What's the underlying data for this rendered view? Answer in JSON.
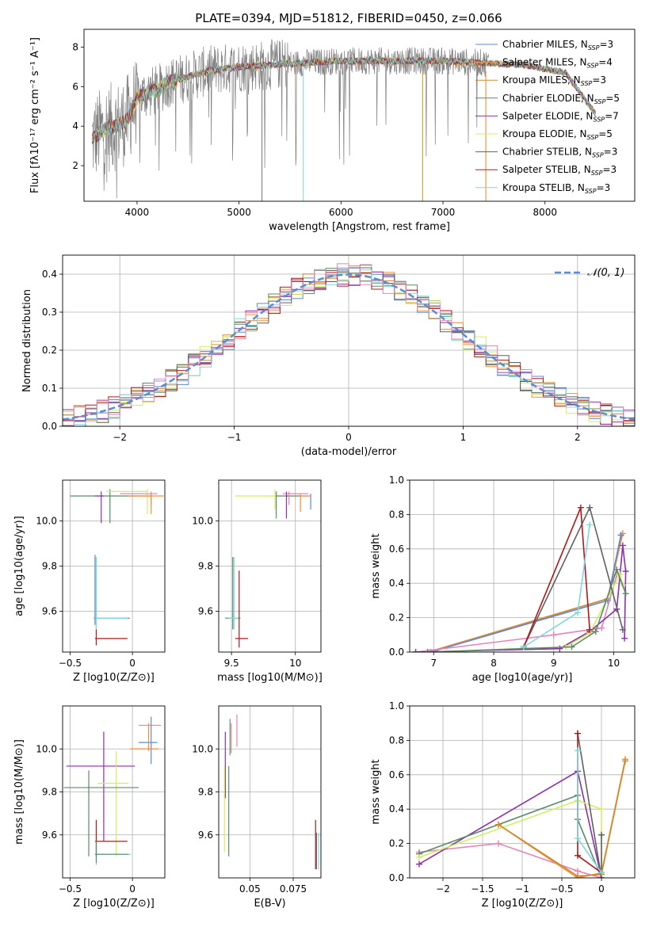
{
  "figure": {
    "title": "PLATE=0394, MJD=51812, FIBERID=0450, z=0.066"
  },
  "colors": {
    "chabrier_miles": "#5b8bd6",
    "salpeter_miles": "#ee8f3a",
    "kroupa_miles": "#d08a2c",
    "chabrier_elodie": "#5a8a6a",
    "salpeter_elodie": "#8e2fb0",
    "kroupa_elodie": "#d2ee5e",
    "chabrier_stelib": "#606060",
    "salpeter_stelib": "#b01818",
    "kroupa_stelib": "#7fd8df",
    "pink": "#e285b8",
    "grey_data": "#808080"
  },
  "chart_data": [
    {
      "id": "spectrum",
      "type": "line",
      "title": "PLATE=0394, MJD=51812, FIBERID=0450, z=0.066",
      "xlabel": "wavelength [Angstrom, rest frame]",
      "ylabel": "Flux [fλ10⁻¹⁷ erg cm⁻² s⁻¹ A⁻¹]",
      "xlim": [
        3480,
        8880
      ],
      "ylim": [
        0.2,
        8.9
      ],
      "xticks": [
        4000,
        5000,
        6000,
        7000,
        8000
      ],
      "yticks": [
        2,
        4,
        6,
        8
      ],
      "grid": false,
      "legend_position": "right",
      "continuum_x": [
        3550,
        3600,
        3700,
        3800,
        3900,
        4000,
        4100,
        4200,
        4300,
        4500,
        4700,
        5000,
        5300,
        5600,
        6000,
        6500,
        7000,
        7400,
        7800,
        8200,
        8500
      ],
      "continuum_y": [
        3.3,
        3.5,
        3.9,
        4.0,
        4.3,
        5.4,
        5.7,
        5.8,
        6.2,
        6.5,
        6.8,
        7.0,
        7.1,
        7.2,
        7.3,
        7.3,
        7.3,
        7.2,
        7.1,
        6.7,
        4.6
      ],
      "legend": [
        {
          "label": "Chabrier MILES, N",
          "sub": "SSP",
          "value": "=3",
          "color": "#5b8bd6"
        },
        {
          "label": "Salpeter MILES, N",
          "sub": "SSP",
          "value": "=4",
          "color": "#ee8f3a"
        },
        {
          "label": "Kroupa MILES, N",
          "sub": "SSP",
          "value": "=3",
          "color": "#d08a2c"
        },
        {
          "label": "Chabrier ELODIE, N",
          "sub": "SSP",
          "value": "=5",
          "color": "#5a8a6a"
        },
        {
          "label": "Salpeter ELODIE, N",
          "sub": "SSP",
          "value": "=7",
          "color": "#8e2fb0"
        },
        {
          "label": "Kroupa ELODIE, N",
          "sub": "SSP",
          "value": "=5",
          "color": "#d2ee5e"
        },
        {
          "label": "Chabrier STELIB, N",
          "sub": "SSP",
          "value": "=3",
          "color": "#606060"
        },
        {
          "label": "Salpeter STELIB, N",
          "sub": "SSP",
          "value": "=3",
          "color": "#b01818"
        },
        {
          "label": "Kroupa STELIB, N",
          "sub": "SSP",
          "value": "=3",
          "color": "#7fd8df"
        }
      ]
    },
    {
      "id": "residuals",
      "type": "line",
      "xlabel": "(data-model)/error",
      "ylabel": "Normed distribution",
      "xlim": [
        -2.5,
        2.5
      ],
      "ylim": [
        0.0,
        0.45
      ],
      "xticks": [
        -2,
        -1,
        0,
        1,
        2
      ],
      "yticks": [
        0.0,
        0.1,
        0.2,
        0.3,
        0.4
      ],
      "grid": true,
      "legend_position": "top-right",
      "legend_label": "𝒩(0, 1)"
    },
    {
      "id": "age_vs_Z",
      "type": "scatter",
      "xlabel": "Z [log10(Z/Z⊙)]",
      "ylabel": "age  [log10(age/yr)]",
      "xlim": [
        -0.56,
        0.26
      ],
      "ylim": [
        9.42,
        10.18
      ],
      "xticks": [
        -0.5,
        0.0
      ],
      "yticks": [
        9.6,
        9.8,
        10.0
      ],
      "grid": true,
      "points": [
        {
          "x": -0.18,
          "y": 10.11,
          "xerr": [
            0.32,
            0.33
          ],
          "yerr": [
            0.12,
            0.03
          ],
          "color": "#5a8a6a"
        },
        {
          "x": 0.12,
          "y": 10.13,
          "xerr": [
            0.33,
            0.0
          ],
          "yerr": [
            0.1,
            0.01
          ],
          "color": "#d2ee5e"
        },
        {
          "x": 0.15,
          "y": 10.12,
          "xerr": [
            0.25,
            0.05
          ],
          "yerr": [
            0.05,
            0.01
          ],
          "color": "#e285b8"
        },
        {
          "x": 0.15,
          "y": 10.11,
          "xerr": [
            0.18,
            0.1
          ],
          "yerr": [
            0.08,
            0.01
          ],
          "color": "#ee8f3a"
        },
        {
          "x": -0.25,
          "y": 10.11,
          "xerr": [
            0.05,
            0.02
          ],
          "yerr": [
            0.12,
            0.02
          ],
          "color": "#8e2fb0"
        },
        {
          "x": -0.29,
          "y": 9.57,
          "xerr": [
            0.02,
            0.27
          ],
          "yerr": [
            0.05,
            0.27
          ],
          "color": "#5a8a6a"
        },
        {
          "x": -0.29,
          "y": 9.57,
          "xerr": [
            0.01,
            0.25
          ],
          "yerr": [
            0.05,
            0.27
          ],
          "color": "#7fd8df"
        },
        {
          "x": -0.29,
          "y": 9.48,
          "xerr": [
            0.01,
            0.25
          ],
          "yerr": [
            0.03,
            0.04
          ],
          "color": "#b01818"
        },
        {
          "x": -0.3,
          "y": 9.57,
          "xerr": [
            0.0,
            0.0
          ],
          "yerr": [
            0.03,
            0.28
          ],
          "color": "#5b8bd6"
        }
      ]
    },
    {
      "id": "age_vs_mass",
      "type": "scatter",
      "xlabel": "mass [log10(M/M⊙)]",
      "ylabel": "",
      "xlim": [
        9.4,
        10.2
      ],
      "ylim": [
        9.42,
        10.18
      ],
      "xticks": [
        9.5,
        10.0
      ],
      "yticks": [
        9.6,
        9.8,
        10.0
      ],
      "grid": true,
      "points": [
        {
          "x": 9.84,
          "y": 10.11,
          "xerr": [
            0.31,
            0.15
          ],
          "yerr": [
            0.06,
            0.03
          ],
          "color": "#d2ee5e"
        },
        {
          "x": 9.85,
          "y": 10.11,
          "xerr": [
            0.0,
            0.25
          ],
          "yerr": [
            0.1,
            0.02
          ],
          "color": "#5a8a6a"
        },
        {
          "x": 9.95,
          "y": 10.12,
          "xerr": [
            0.05,
            0.15
          ],
          "yerr": [
            0.05,
            0.01
          ],
          "color": "#e285b8"
        },
        {
          "x": 10.04,
          "y": 10.11,
          "xerr": [
            0.0,
            0.08
          ],
          "yerr": [
            0.07,
            0.01
          ],
          "color": "#ee8f3a"
        },
        {
          "x": 10.12,
          "y": 10.11,
          "xerr": [
            0.0,
            0.0
          ],
          "yerr": [
            0.06,
            0.01
          ],
          "color": "#5b8bd6"
        },
        {
          "x": 9.93,
          "y": 10.11,
          "xerr": [
            0.0,
            0.01
          ],
          "yerr": [
            0.1,
            0.02
          ],
          "color": "#8e2fb0"
        },
        {
          "x": 9.51,
          "y": 9.57,
          "xerr": [
            0.06,
            0.06
          ],
          "yerr": [
            0.05,
            0.27
          ],
          "color": "#5a8a6a"
        },
        {
          "x": 9.52,
          "y": 9.57,
          "xerr": [
            0.04,
            0.04
          ],
          "yerr": [
            0.05,
            0.27
          ],
          "color": "#7fd8df"
        },
        {
          "x": 9.56,
          "y": 9.48,
          "xerr": [
            0.03,
            0.07
          ],
          "yerr": [
            0.04,
            0.3
          ],
          "color": "#b01818"
        }
      ]
    },
    {
      "id": "weight_vs_age",
      "type": "line",
      "xlabel": "age  [log10(age/yr)]",
      "ylabel": "mass weight",
      "xlim": [
        6.6,
        10.35
      ],
      "ylim": [
        0.0,
        1.0
      ],
      "xticks": [
        7,
        8,
        9,
        10
      ],
      "yticks": [
        0.0,
        0.2,
        0.4,
        0.6,
        0.8,
        1.0
      ],
      "grid": true,
      "series": [
        {
          "color": "#ee8f3a",
          "x": [
            6.9,
            9.9,
            10.15
          ],
          "y": [
            0.0,
            0.31,
            0.69
          ]
        },
        {
          "color": "#d08a2c",
          "x": [
            6.95,
            9.9,
            10.12
          ],
          "y": [
            0.0,
            0.31,
            0.68
          ]
        },
        {
          "color": "#5b8bd6",
          "x": [
            6.95,
            9.9,
            10.12
          ],
          "y": [
            0.0,
            0.3,
            0.68
          ]
        },
        {
          "color": "#e285b8",
          "x": [
            6.7,
            9.0,
            9.8,
            10.05
          ],
          "y": [
            0.0,
            0.1,
            0.14,
            0.45
          ]
        },
        {
          "color": "#8e2fb0",
          "x": [
            6.7,
            9.1,
            9.6,
            10.05,
            10.15,
            10.2,
            10.18
          ],
          "y": [
            0.0,
            0.02,
            0.12,
            0.25,
            0.62,
            0.47,
            0.08
          ]
        },
        {
          "color": "#d2ee5e",
          "x": [
            6.9,
            9.2,
            9.6,
            10.1,
            10.15
          ],
          "y": [
            0.0,
            0.03,
            0.11,
            0.45,
            0.39
          ]
        },
        {
          "color": "#5a8a6a",
          "x": [
            6.9,
            9.3,
            9.7,
            10.05,
            10.2
          ],
          "y": [
            0.0,
            0.03,
            0.12,
            0.48,
            0.34
          ]
        },
        {
          "color": "#606060",
          "x": [
            8.5,
            9.6,
            10.15
          ],
          "y": [
            0.03,
            0.84,
            0.13
          ]
        },
        {
          "color": "#b01818",
          "x": [
            8.5,
            9.45,
            9.6
          ],
          "y": [
            0.03,
            0.84,
            0.13
          ]
        },
        {
          "color": "#7fd8df",
          "x": [
            8.5,
            9.4,
            9.6
          ],
          "y": [
            0.03,
            0.23,
            0.74
          ]
        }
      ]
    },
    {
      "id": "mass_vs_Z",
      "type": "scatter",
      "xlabel": "Z [log10(Z/Z⊙)]",
      "ylabel": "mass [log10(M/M⊙)]",
      "xlim": [
        -0.56,
        0.26
      ],
      "ylim": [
        9.4,
        10.2
      ],
      "xticks": [
        -0.5,
        0.0
      ],
      "yticks": [
        9.6,
        9.8,
        10.0
      ],
      "grid": true,
      "points": [
        {
          "x": 0.14,
          "y": 10.11,
          "xerr": [
            0.09,
            0.09
          ],
          "yerr": [
            0.0,
            0.0
          ],
          "color": "#e285b8"
        },
        {
          "x": 0.15,
          "y": 10.03,
          "xerr": [
            0.1,
            0.05
          ],
          "yerr": [
            0.1,
            0.12
          ],
          "color": "#5b8bd6"
        },
        {
          "x": 0.13,
          "y": 10.0,
          "xerr": [
            0.15,
            0.08
          ],
          "yerr": [
            0.01,
            0.12
          ],
          "color": "#ee8f3a"
        },
        {
          "x": -0.23,
          "y": 9.92,
          "xerr": [
            0.3,
            0.25
          ],
          "yerr": [
            0.35,
            0.16
          ],
          "color": "#8e2fb0"
        },
        {
          "x": -0.13,
          "y": 9.84,
          "xerr": [
            0.15,
            0.1
          ],
          "yerr": [
            0.34,
            0.15
          ],
          "color": "#d2ee5e"
        },
        {
          "x": -0.35,
          "y": 9.82,
          "xerr": [
            0.2,
            0.4
          ],
          "yerr": [
            0.32,
            0.08
          ],
          "color": "#5a8a6a"
        },
        {
          "x": -0.29,
          "y": 9.57,
          "xerr": [
            0.01,
            0.25
          ],
          "yerr": [
            0.07,
            0.1
          ],
          "color": "#b01818"
        },
        {
          "x": -0.29,
          "y": 9.51,
          "xerr": [
            0.01,
            0.28
          ],
          "yerr": [
            0.05,
            0.06
          ],
          "color": "#7fd8df"
        },
        {
          "x": -0.29,
          "y": 9.51,
          "xerr": [
            0.01,
            0.26
          ],
          "yerr": [
            0.04,
            0.06
          ],
          "color": "#5a8a6a"
        }
      ]
    },
    {
      "id": "mass_vs_ebv",
      "type": "scatter",
      "xlabel": "E(B-V)",
      "ylabel": "",
      "xlim": [
        0.032,
        0.091
      ],
      "ylim": [
        9.4,
        10.2
      ],
      "xticks": [
        0.05,
        0.075
      ],
      "yticks": [
        9.6,
        9.8,
        10.0
      ],
      "grid": true,
      "points": [
        {
          "x": 0.0425,
          "y": 10.06,
          "xerr": [
            0.0,
            0.0
          ],
          "yerr": [
            0.05,
            0.1
          ],
          "color": "#e285b8"
        },
        {
          "x": 0.0385,
          "y": 10.04,
          "xerr": [
            0.0,
            0.0
          ],
          "yerr": [
            0.07,
            0.1
          ],
          "color": "#5b8bd6"
        },
        {
          "x": 0.0392,
          "y": 10.05,
          "xerr": [
            0.0,
            0.0
          ],
          "yerr": [
            0.07,
            0.07
          ],
          "color": "#ee8f3a"
        },
        {
          "x": 0.0358,
          "y": 9.92,
          "xerr": [
            0.0,
            0.0
          ],
          "yerr": [
            0.15,
            0.16
          ],
          "color": "#8e2fb0"
        },
        {
          "x": 0.0353,
          "y": 9.65,
          "xerr": [
            0.0,
            0.0
          ],
          "yerr": [
            0.13,
            0.27
          ],
          "color": "#d2ee5e"
        },
        {
          "x": 0.0378,
          "y": 9.7,
          "xerr": [
            0.0,
            0.0
          ],
          "yerr": [
            0.2,
            0.22
          ],
          "color": "#5a8a6a"
        },
        {
          "x": 0.0879,
          "y": 9.55,
          "xerr": [
            0.0,
            0.0
          ],
          "yerr": [
            0.11,
            0.12
          ],
          "color": "#b01818"
        },
        {
          "x": 0.0884,
          "y": 9.53,
          "xerr": [
            0.0,
            0.0
          ],
          "yerr": [
            0.09,
            0.08
          ],
          "color": "#606060"
        },
        {
          "x": 0.0896,
          "y": 9.52,
          "xerr": [
            0.0,
            0.0
          ],
          "yerr": [
            0.08,
            0.09
          ],
          "color": "#7fd8df"
        }
      ]
    },
    {
      "id": "weight_vs_Z",
      "type": "line",
      "xlabel": "Z [log10(Z/Z⊙)]",
      "ylabel": "mass weight",
      "xlim": [
        -2.42,
        0.42
      ],
      "ylim": [
        0.0,
        1.0
      ],
      "xticks": [
        -2.0,
        -1.5,
        -1.0,
        -0.5,
        0.0
      ],
      "yticks": [
        0.0,
        0.2,
        0.4,
        0.6,
        0.8,
        1.0
      ],
      "grid": true,
      "series": [
        {
          "color": "#e285b8",
          "x": [
            -2.3,
            -1.3,
            -0.3,
            0.0
          ],
          "y": [
            0.15,
            0.2,
            0.04,
            0.0
          ]
        },
        {
          "color": "#8e2fb0",
          "x": [
            -2.3,
            -0.3,
            0.0
          ],
          "y": [
            0.08,
            0.62,
            0.0
          ]
        },
        {
          "color": "#5a8a6a",
          "x": [
            -2.3,
            -0.3,
            -0.3,
            0.0
          ],
          "y": [
            0.14,
            0.48,
            0.34,
            0.0
          ]
        },
        {
          "color": "#d2ee5e",
          "x": [
            -2.3,
            -0.3,
            0.0,
            0.0
          ],
          "y": [
            0.12,
            0.45,
            0.4,
            0.0
          ]
        },
        {
          "color": "#ee8f3a",
          "x": [
            -1.3,
            -0.3,
            0.0,
            0.3
          ],
          "y": [
            0.31,
            0.0,
            0.03,
            0.69
          ]
        },
        {
          "color": "#d08a2c",
          "x": [
            -1.3,
            -0.3,
            0.0,
            0.3
          ],
          "y": [
            0.31,
            0.01,
            0.02,
            0.68
          ]
        },
        {
          "color": "#606060",
          "x": [
            -0.3,
            0.0,
            0.0
          ],
          "y": [
            0.84,
            0.0,
            0.25
          ]
        },
        {
          "color": "#b01818",
          "x": [
            -0.3,
            -0.3,
            0.0
          ],
          "y": [
            0.84,
            0.13,
            0.03
          ]
        },
        {
          "color": "#7fd8df",
          "x": [
            -0.3,
            -0.3,
            0.0
          ],
          "y": [
            0.74,
            0.23,
            0.03
          ]
        }
      ]
    }
  ]
}
